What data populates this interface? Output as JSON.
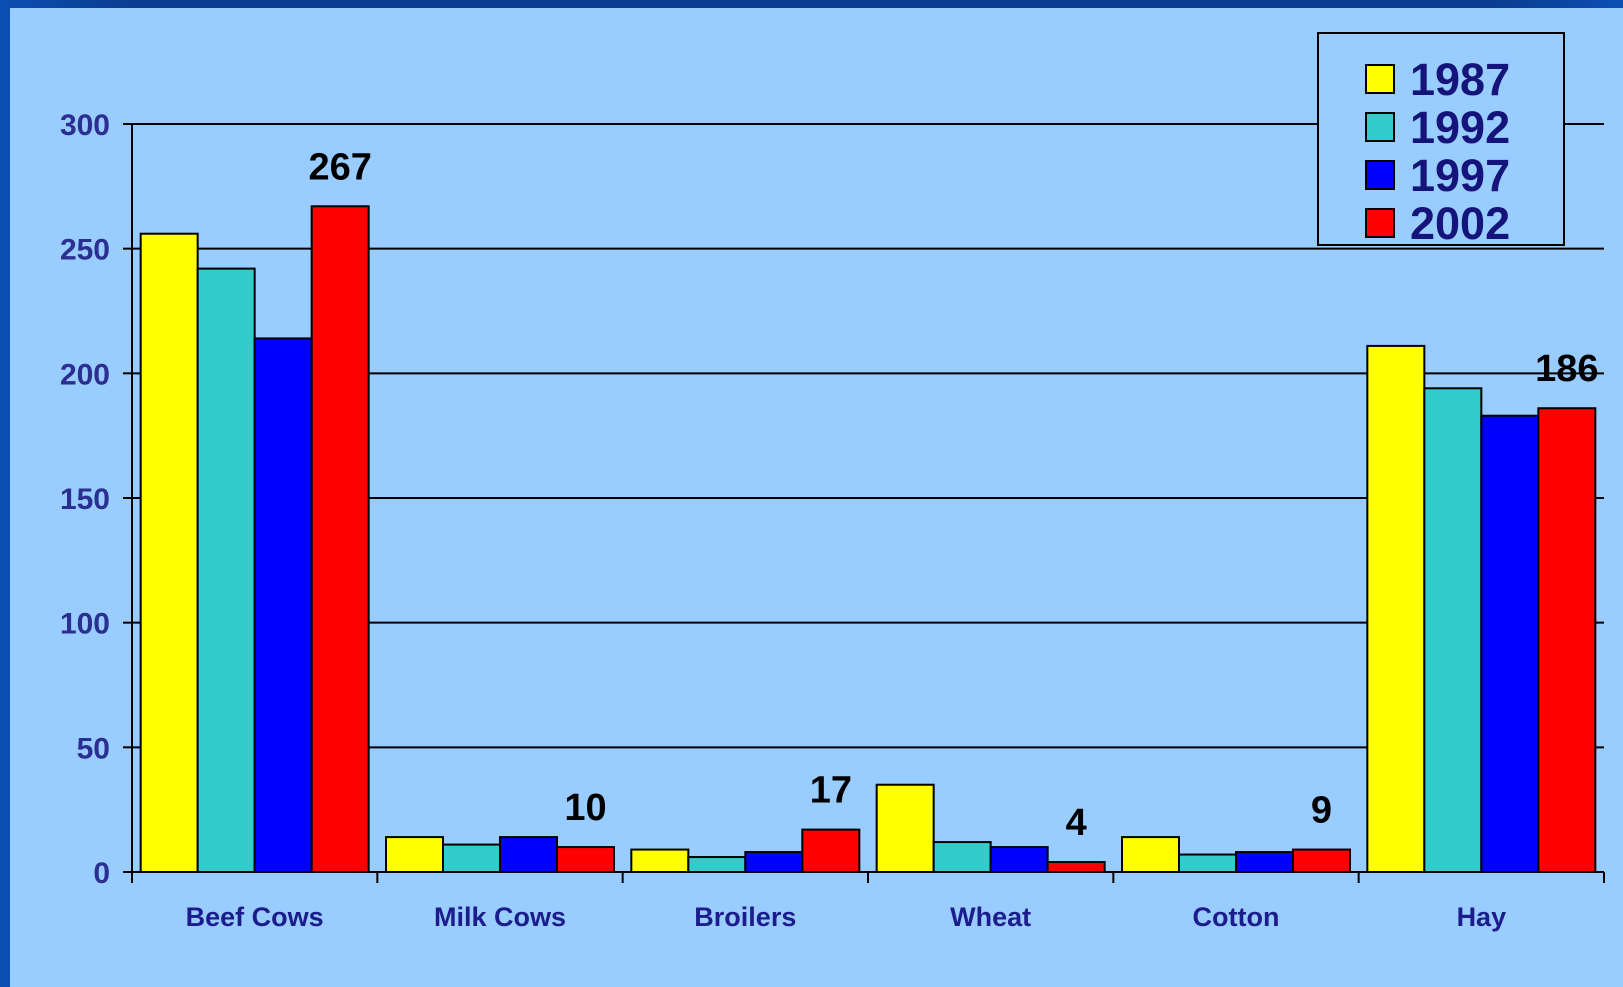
{
  "chart_data": {
    "type": "bar",
    "categories": [
      "Beef Cows",
      "Milk Cows",
      "Broilers",
      "Wheat",
      "Cotton",
      "Hay"
    ],
    "series": [
      {
        "name": "1987",
        "color": "#ffff00",
        "values": [
          256,
          14,
          9,
          35,
          14,
          211
        ]
      },
      {
        "name": "1992",
        "color": "#33cccc",
        "values": [
          242,
          11,
          6,
          12,
          7,
          194
        ]
      },
      {
        "name": "1997",
        "color": "#0000ff",
        "values": [
          214,
          14,
          8,
          10,
          8,
          183
        ]
      },
      {
        "name": "2002",
        "color": "#ff0000",
        "values": [
          267,
          10,
          17,
          4,
          9,
          186
        ]
      }
    ],
    "data_labels": [
      {
        "category_index": 0,
        "series_index": 3,
        "text": "267"
      },
      {
        "category_index": 1,
        "series_index": 3,
        "text": "10"
      },
      {
        "category_index": 2,
        "series_index": 3,
        "text": "17"
      },
      {
        "category_index": 3,
        "series_index": 3,
        "text": "4"
      },
      {
        "category_index": 4,
        "series_index": 3,
        "text": "9"
      },
      {
        "category_index": 5,
        "series_index": 3,
        "text": "186"
      }
    ],
    "ylim": [
      0,
      300
    ],
    "yticks": [
      "0",
      "50",
      "100",
      "150",
      "200",
      "250",
      "300"
    ],
    "grid": true,
    "legend_position": "top-right",
    "title": "",
    "xlabel": "",
    "ylabel": ""
  }
}
